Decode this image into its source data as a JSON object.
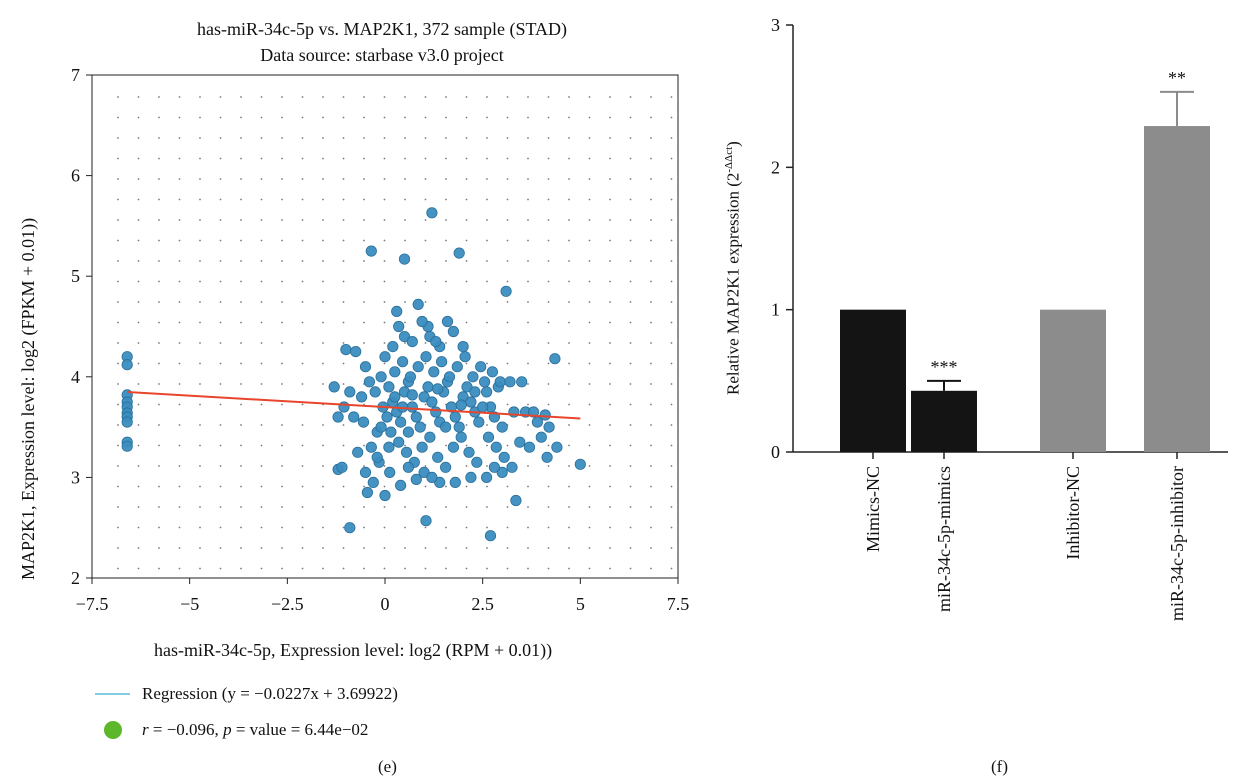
{
  "chart_data": [
    {
      "type": "scatter",
      "title": "has-miR-34c-5p vs. MAP2K1, 372 sample (STAD)",
      "subtitle": "Data source: starbase v3.0 project",
      "xlabel": "has-miR-34c-5p, Expression level: log2 (RPM + 0.01))",
      "ylabel": "MAP2K1, Expression level: log2 (FPKM + 0.01))",
      "xlim": [
        -7.5,
        7.5
      ],
      "ylim": [
        2,
        7
      ],
      "x_ticks": [
        "−7.5",
        "−5",
        "−2.5",
        "0",
        "2.5",
        "5",
        "7.5"
      ],
      "y_ticks": [
        "2",
        "3",
        "4",
        "5",
        "6",
        "7"
      ],
      "grid": "dotted",
      "point_color": "#3a8dbf",
      "line_color": "#e8452c",
      "regression": {
        "slope": -0.0227,
        "intercept": 3.69922,
        "x_range": [
          -6.6,
          5
        ]
      },
      "legend": [
        {
          "label": "Regression (y = −0.0227x + 3.69922)",
          "marker": "line",
          "color": "#5bbcd6"
        },
        {
          "label": "r = −0.096, p = value = 6.44e−02",
          "marker": "circle",
          "color": "#5cb82a"
        }
      ],
      "points": [
        [
          -6.6,
          4.2
        ],
        [
          -6.6,
          4.12
        ],
        [
          -6.6,
          3.82
        ],
        [
          -6.6,
          3.75
        ],
        [
          -6.6,
          3.7
        ],
        [
          -6.6,
          3.64
        ],
        [
          -6.6,
          3.6
        ],
        [
          -6.6,
          3.55
        ],
        [
          -6.6,
          3.35
        ],
        [
          -6.6,
          3.31
        ],
        [
          1.2,
          5.63
        ],
        [
          -0.35,
          5.25
        ],
        [
          0.5,
          5.17
        ],
        [
          1.9,
          5.23
        ],
        [
          3.1,
          4.85
        ],
        [
          0.85,
          4.72
        ],
        [
          0.3,
          4.65
        ],
        [
          1.6,
          4.55
        ],
        [
          1.1,
          4.5
        ],
        [
          4.35,
          4.18
        ],
        [
          -0.9,
          2.5
        ],
        [
          1.05,
          2.57
        ],
        [
          2.7,
          2.42
        ],
        [
          3.35,
          2.77
        ],
        [
          5.0,
          3.13
        ],
        [
          -1.2,
          3.08
        ],
        [
          -1.1,
          3.1
        ],
        [
          -1.0,
          4.27
        ],
        [
          -0.75,
          4.25
        ],
        [
          -0.5,
          4.1
        ],
        [
          -1.3,
          3.9
        ],
        [
          -0.9,
          3.85
        ],
        [
          -0.6,
          3.8
        ],
        [
          -1.05,
          3.7
        ],
        [
          -0.8,
          3.6
        ],
        [
          -0.55,
          3.55
        ],
        [
          -1.2,
          3.6
        ],
        [
          -0.4,
          3.95
        ],
        [
          -0.2,
          3.45
        ],
        [
          -0.35,
          3.3
        ],
        [
          -0.7,
          3.25
        ],
        [
          -0.15,
          3.15
        ],
        [
          -0.3,
          2.95
        ],
        [
          -0.45,
          2.85
        ],
        [
          0.0,
          2.82
        ],
        [
          -0.5,
          3.05
        ],
        [
          0.1,
          3.9
        ],
        [
          0.2,
          3.75
        ],
        [
          0.3,
          3.65
        ],
        [
          0.4,
          3.55
        ],
        [
          0.5,
          3.85
        ],
        [
          0.6,
          3.95
        ],
        [
          0.7,
          3.7
        ],
        [
          0.8,
          3.6
        ],
        [
          0.9,
          3.5
        ],
        [
          1.0,
          3.8
        ],
        [
          1.1,
          3.9
        ],
        [
          1.2,
          3.75
        ],
        [
          1.3,
          3.65
        ],
        [
          1.4,
          3.55
        ],
        [
          1.5,
          3.85
        ],
        [
          1.6,
          3.95
        ],
        [
          1.7,
          3.7
        ],
        [
          1.8,
          3.6
        ],
        [
          1.9,
          3.5
        ],
        [
          2.0,
          3.8
        ],
        [
          2.1,
          3.9
        ],
        [
          2.2,
          3.75
        ],
        [
          2.3,
          3.65
        ],
        [
          2.4,
          3.55
        ],
        [
          0.15,
          3.45
        ],
        [
          0.35,
          3.35
        ],
        [
          0.55,
          3.25
        ],
        [
          0.75,
          3.15
        ],
        [
          0.95,
          3.3
        ],
        [
          1.15,
          3.4
        ],
        [
          1.35,
          3.2
        ],
        [
          1.55,
          3.1
        ],
        [
          1.75,
          3.3
        ],
        [
          1.95,
          3.4
        ],
        [
          2.15,
          3.25
        ],
        [
          2.35,
          3.15
        ],
        [
          0.25,
          4.05
        ],
        [
          0.45,
          4.15
        ],
        [
          0.65,
          4.0
        ],
        [
          0.85,
          4.1
        ],
        [
          1.05,
          4.2
        ],
        [
          1.25,
          4.05
        ],
        [
          1.45,
          4.15
        ],
        [
          1.65,
          4.0
        ],
        [
          1.85,
          4.1
        ],
        [
          2.05,
          4.2
        ],
        [
          2.25,
          4.0
        ],
        [
          2.45,
          4.1
        ],
        [
          0.05,
          3.6
        ],
        [
          0.6,
          3.45
        ],
        [
          1.0,
          3.05
        ],
        [
          1.4,
          2.95
        ],
        [
          1.8,
          2.95
        ],
        [
          2.2,
          3.0
        ],
        [
          0.4,
          2.92
        ],
        [
          0.8,
          2.98
        ],
        [
          2.6,
          3.85
        ],
        [
          2.7,
          3.7
        ],
        [
          2.8,
          3.6
        ],
        [
          2.9,
          3.9
        ],
        [
          3.0,
          3.5
        ],
        [
          2.65,
          3.4
        ],
        [
          2.85,
          3.3
        ],
        [
          3.05,
          3.2
        ],
        [
          2.55,
          3.95
        ],
        [
          2.75,
          4.05
        ],
        [
          2.95,
          3.95
        ],
        [
          3.2,
          3.95
        ],
        [
          3.5,
          3.95
        ],
        [
          3.3,
          3.65
        ],
        [
          3.6,
          3.65
        ],
        [
          3.8,
          3.65
        ],
        [
          3.9,
          3.55
        ],
        [
          4.1,
          3.62
        ],
        [
          4.2,
          3.5
        ],
        [
          4.0,
          3.4
        ],
        [
          3.7,
          3.3
        ],
        [
          3.45,
          3.35
        ],
        [
          4.4,
          3.3
        ],
        [
          4.15,
          3.2
        ],
        [
          3.25,
          3.1
        ],
        [
          3.0,
          3.05
        ],
        [
          2.8,
          3.1
        ],
        [
          2.6,
          3.0
        ],
        [
          0.2,
          4.3
        ],
        [
          0.5,
          4.4
        ],
        [
          0.7,
          4.35
        ],
        [
          1.15,
          4.4
        ],
        [
          1.4,
          4.3
        ],
        [
          1.75,
          4.45
        ],
        [
          2.0,
          4.3
        ],
        [
          0.95,
          4.55
        ],
        [
          1.3,
          4.35
        ],
        [
          0.35,
          4.5
        ],
        [
          0.6,
          3.1
        ],
        [
          1.2,
          3.0
        ],
        [
          1.55,
          3.5
        ],
        [
          0.45,
          3.7
        ],
        [
          0.25,
          3.8
        ],
        [
          0.7,
          3.82
        ],
        [
          1.35,
          3.88
        ],
        [
          1.95,
          3.72
        ],
        [
          2.3,
          3.85
        ],
        [
          2.5,
          3.7
        ],
        [
          0.1,
          3.3
        ],
        [
          -0.05,
          3.7
        ],
        [
          -0.1,
          3.5
        ],
        [
          -0.25,
          3.85
        ],
        [
          -0.1,
          4.0
        ],
        [
          0.0,
          4.2
        ],
        [
          -0.2,
          3.2
        ],
        [
          0.12,
          3.05
        ]
      ]
    },
    {
      "type": "bar",
      "categories": [
        "Mimics-NC",
        "miR-34c-5p-mimics",
        "Inhibitor-NC",
        "miR-34c-5p-inhibitor"
      ],
      "values": [
        1.0,
        0.43,
        1.0,
        2.29
      ],
      "errors": [
        0,
        0.07,
        0,
        0.24
      ],
      "significance": [
        "",
        "***",
        "",
        "**"
      ],
      "colors": [
        "#141414",
        "#141414",
        "#8c8c8c",
        "#8c8c8c"
      ],
      "ylabel": "Relative MAP2K1 expression (2",
      "ylabel_superscript": "-ΔΔct",
      "ylabel_close": ")",
      "ylim": [
        0,
        3
      ],
      "y_ticks": [
        "0",
        "1",
        "2",
        "3"
      ]
    }
  ],
  "panel_labels": {
    "left": "(e)",
    "right": "(f)"
  }
}
